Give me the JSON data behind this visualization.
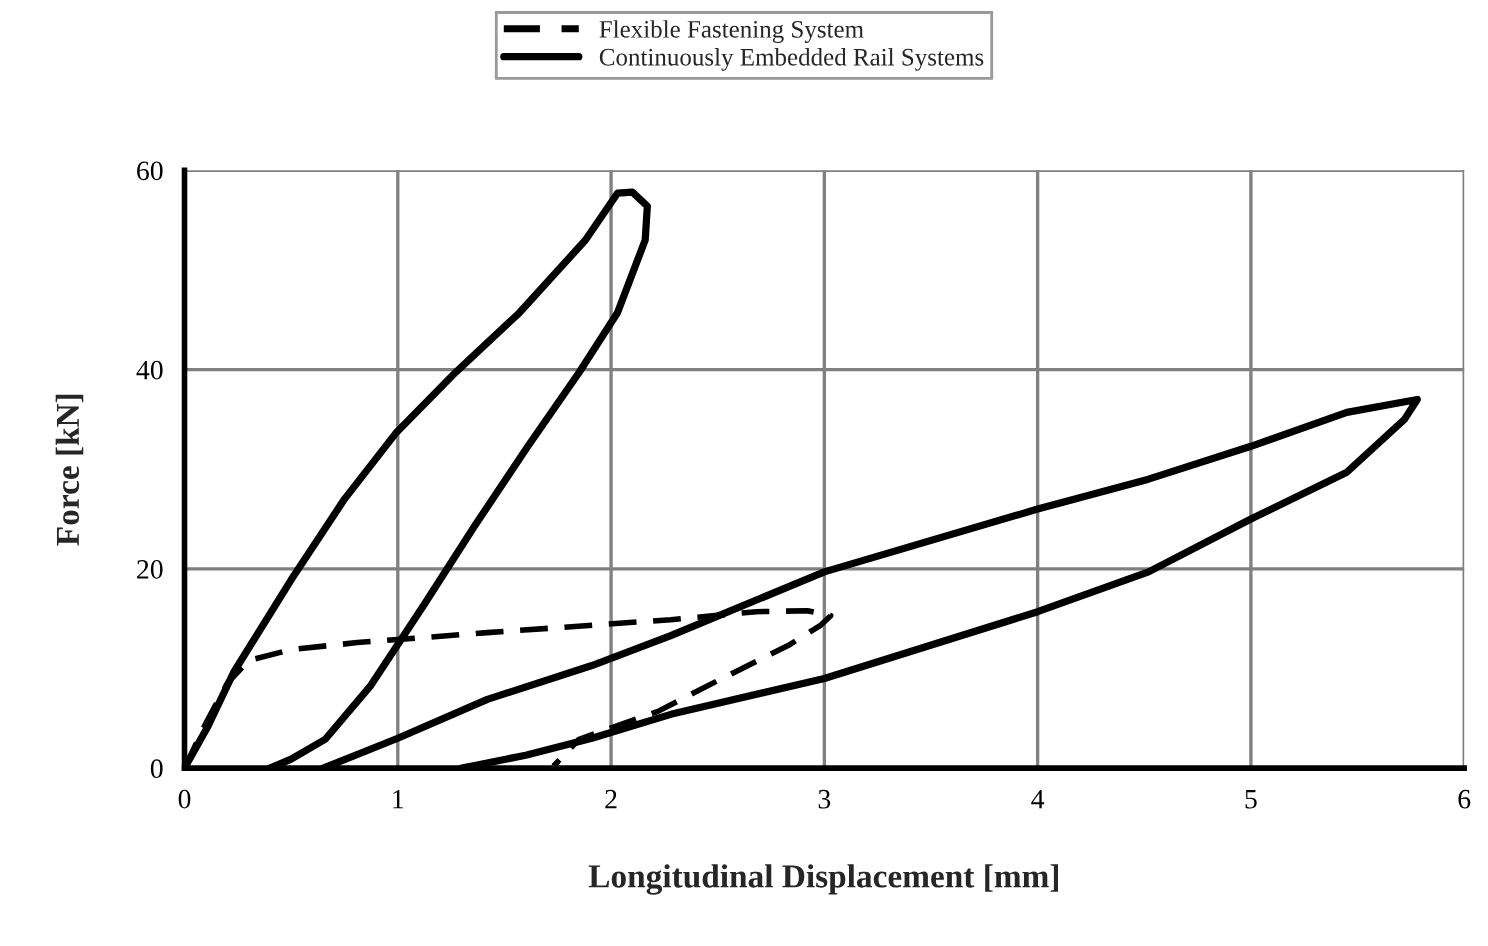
{
  "chart_data": {
    "type": "line",
    "xlabel": "Longitudinal Displacement [mm]",
    "ylabel": "Force [kN]",
    "xlim": [
      0,
      6
    ],
    "ylim": [
      0,
      60
    ],
    "xticks": [
      0,
      1,
      2,
      3,
      4,
      5,
      6
    ],
    "yticks": [
      0,
      20,
      40,
      60
    ],
    "grid": true,
    "legend": "top",
    "marker": "none",
    "series": [
      {
        "name": "Flexible Fastening System",
        "color": "#000000",
        "line_style": "dashed",
        "x": [
          0,
          0.1,
          0.2,
          0.3,
          0.5,
          0.81,
          1.42,
          2.28,
          2.68,
          2.92,
          3.03,
          2.98,
          2.83,
          2.52,
          2.22,
          1.85,
          1.73
        ],
        "values": [
          0,
          4.5,
          8.5,
          10.8,
          11.9,
          12.6,
          13.6,
          14.9,
          15.7,
          15.8,
          15.3,
          14.3,
          12.3,
          9,
          5.7,
          2.9,
          0.2
        ]
      },
      {
        "name": "Continuously Embedded Rail Systems",
        "color": "#000000",
        "line_style": "solid",
        "x": [
          0,
          0.11,
          0.23,
          0.5,
          0.75,
          0.99,
          1.27,
          1.57,
          1.88,
          2.03,
          2.1,
          2.17,
          2.16,
          2.03,
          1.85,
          1.61,
          1.36,
          1.12,
          0.87,
          0.66,
          0.5,
          0.4,
          null,
          0.65,
          1.0,
          1.42,
          1.91,
          2.28,
          3.0,
          4.0,
          4.52,
          5.0,
          5.45,
          5.78,
          5.72,
          5.45,
          5.0,
          4.52,
          4.0,
          3.0,
          2.28,
          1.91,
          1.6,
          1.3
        ],
        "values": [
          0,
          4.2,
          9.6,
          18.9,
          27,
          33.6,
          39.7,
          45.7,
          53,
          57.7,
          57.8,
          56.4,
          53,
          45.7,
          39.7,
          32.3,
          24.3,
          16.3,
          8.2,
          2.9,
          0.9,
          0,
          null,
          0,
          3.0,
          6.9,
          10.3,
          13.3,
          19.7,
          26,
          29,
          32.3,
          35.7,
          37,
          35,
          29.7,
          25,
          19.7,
          15.7,
          9,
          5.4,
          3,
          1.3,
          0
        ]
      }
    ]
  }
}
